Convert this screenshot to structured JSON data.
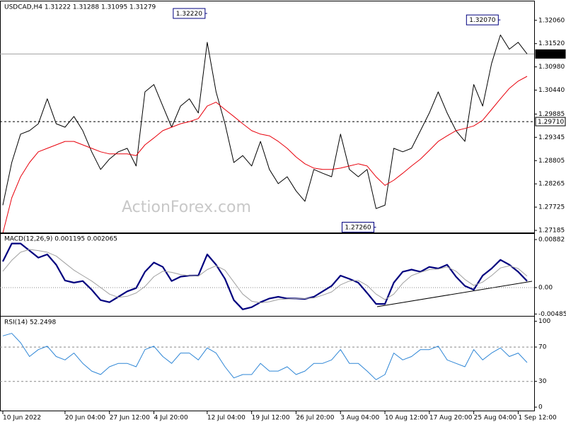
{
  "chart_data": [
    {
      "type": "line",
      "title": "USDCAD,H4  1.31222 1.31288 1.31095 1.31279",
      "watermark": "ActionForex.com",
      "categories": [
        "10 Jun 2022",
        null,
        null,
        null,
        null,
        null,
        null,
        "20 Jun 04:00",
        null,
        null,
        null,
        null,
        "27 Jun 12:00",
        null,
        null,
        null,
        null,
        "4 Jul 20:00",
        null,
        null,
        null,
        null,
        null,
        "12 Jul 04:00",
        null,
        null,
        null,
        null,
        "19 Jul 12:00",
        null,
        null,
        null,
        null,
        "26 Jul 20:00",
        null,
        null,
        null,
        null,
        "3 Aug 04:00",
        null,
        null,
        null,
        null,
        "10 Aug 12:00",
        null,
        null,
        null,
        null,
        "17 Aug 20:00",
        null,
        null,
        null,
        null,
        "25 Aug 04:00",
        null,
        null,
        null,
        null,
        "1 Sep 12:00",
        null
      ],
      "ylim": [
        1.2712,
        1.3245
      ],
      "yticks": [
        {
          "value": 1.3206,
          "label": "1.32060"
        },
        {
          "value": 1.3152,
          "label": "1.31520"
        },
        {
          "value": 1.3098,
          "label": "1.30980"
        },
        {
          "value": 1.3044,
          "label": "1.30440"
        },
        1.29885,
        1.29345,
        1.28805,
        1.28265,
        1.27725,
        1.27185
      ],
      "series": [
        {
          "color": "#000000",
          "line_width": 1,
          "values": [
            1.2777,
            1.2876,
            1.2942,
            1.295,
            1.2966,
            1.3024,
            1.2966,
            1.2958,
            1.2983,
            1.295,
            1.2901,
            1.286,
            1.2884,
            1.2901,
            1.2909,
            1.2868,
            1.304,
            1.3057,
            1.3007,
            1.2958,
            1.3007,
            1.3024,
            1.2991,
            1.3155,
            1.304,
            1.2966,
            1.2876,
            1.2892,
            1.2868,
            1.2925,
            1.286,
            1.2827,
            1.2843,
            1.281,
            1.2786,
            1.286,
            1.2851,
            1.2843,
            1.2942,
            1.286,
            1.2843,
            1.286,
            1.2769,
            1.2777,
            1.2909,
            1.2901,
            1.2909,
            1.295,
            1.2991,
            1.304,
            1.2991,
            1.295,
            1.2925,
            1.3057,
            1.3007,
            1.3106,
            1.3172,
            1.3139,
            1.3155,
            1.3128
          ]
        },
        {
          "color": "#e8000b",
          "line_width": 1,
          "values": [
            1.2712,
            1.2794,
            1.2843,
            1.2876,
            1.2901,
            1.2909,
            1.2917,
            1.2925,
            1.2925,
            1.2917,
            1.2909,
            1.2901,
            1.2896,
            1.2896,
            1.2896,
            1.2892,
            1.2917,
            1.2933,
            1.295,
            1.2958,
            1.2966,
            1.2971,
            1.2978,
            1.3007,
            1.3016,
            1.2999,
            1.2983,
            1.2966,
            1.295,
            1.2942,
            1.2938,
            1.2925,
            1.2909,
            1.2889,
            1.2873,
            1.2863,
            1.286,
            1.286,
            1.2863,
            1.2868,
            1.2873,
            1.2868,
            1.2843,
            1.2823,
            1.2835,
            1.2851,
            1.2868,
            1.2884,
            1.2904,
            1.2925,
            1.2938,
            1.295,
            1.2955,
            1.2961,
            1.2974,
            1.2999,
            1.3024,
            1.3048,
            1.3065,
            1.3076
          ]
        }
      ],
      "hlines": [
        {
          "value": 1.31279,
          "label": "1.31279",
          "style": "current"
        },
        {
          "value": 1.2971,
          "label": "1.29710",
          "style": "dashed"
        }
      ],
      "annotations": [
        {
          "value": 1.3222,
          "label": "1.32220",
          "x": 23
        },
        {
          "value": 1.3207,
          "label": "1.32070",
          "x": 56
        },
        {
          "value": 1.2726,
          "label": "1.27260",
          "x": 42
        }
      ]
    },
    {
      "type": "line",
      "title": "MACD(12,26,9) 0.001195 0.002065",
      "ylim": [
        -0.0052,
        0.0096
      ],
      "yticks": [
        0.00882,
        {
          "value": 0,
          "label": "0.00"
        },
        -0.004858
      ],
      "series": [
        {
          "color": "#00007f",
          "line_width": 2.2,
          "values": [
            0.0048,
            0.0081,
            0.0081,
            0.0068,
            0.0055,
            0.0061,
            0.0042,
            0.0013,
            0.0009,
            0.0012,
            -0.0004,
            -0.0023,
            -0.0027,
            -0.0017,
            -0.0007,
            -0.0001,
            0.0029,
            0.0046,
            0.0038,
            0.0012,
            0.002,
            0.0022,
            0.0022,
            0.0061,
            0.0042,
            0.0016,
            -0.0023,
            -0.004,
            -0.0036,
            -0.0027,
            -0.002,
            -0.0017,
            -0.002,
            -0.002,
            -0.0021,
            -0.0017,
            -0.0007,
            0.0003,
            0.0022,
            0.0016,
            0.0009,
            -0.001,
            -0.003,
            -0.003,
            0.0009,
            0.0029,
            0.0033,
            0.0029,
            0.0038,
            0.0035,
            0.0042,
            0.002,
            0.0003,
            -0.0004,
            0.0022,
            0.0035,
            0.0051,
            0.0042,
            0.0029,
            0.0012
          ]
        },
        {
          "color": "#a0a0a0",
          "line_width": 1,
          "values": [
            0.003,
            0.005,
            0.0065,
            0.007,
            0.0068,
            0.0065,
            0.0058,
            0.0045,
            0.0032,
            0.0022,
            0.0012,
            0.0,
            -0.0012,
            -0.0018,
            -0.0016,
            -0.001,
            0.0002,
            0.002,
            0.003,
            0.0028,
            0.0024,
            0.0022,
            0.0021,
            0.0033,
            0.004,
            0.0032,
            0.001,
            -0.0012,
            -0.0025,
            -0.0028,
            -0.0026,
            -0.0022,
            -0.0021,
            -0.002,
            -0.002,
            -0.0019,
            -0.0014,
            -0.0008,
            0.0005,
            0.0012,
            0.0013,
            0.0004,
            -0.0012,
            -0.0022,
            -0.0012,
            0.0008,
            0.0022,
            0.0028,
            0.0033,
            0.0034,
            0.0038,
            0.003,
            0.0015,
            0.0004,
            0.001,
            0.0022,
            0.0036,
            0.004,
            0.0035,
            0.0021
          ]
        }
      ],
      "hlines": [
        {
          "value": 0,
          "style": "dotted"
        }
      ]
    },
    {
      "type": "line",
      "title": "RSI(14) 52.2498",
      "ylim": [
        -4,
        103
      ],
      "yticks": [
        0,
        30,
        70,
        100
      ],
      "series": [
        {
          "color": "#2e86d6",
          "line_width": 1,
          "values": [
            83,
            86,
            75,
            59,
            67,
            71,
            59,
            55,
            63,
            51,
            42,
            38,
            47,
            51,
            51,
            47,
            67,
            71,
            59,
            51,
            63,
            63,
            55,
            69,
            63,
            47,
            34,
            38,
            38,
            51,
            42,
            42,
            47,
            38,
            42,
            51,
            51,
            55,
            67,
            51,
            51,
            42,
            32,
            38,
            63,
            55,
            59,
            67,
            67,
            71,
            55,
            51,
            47,
            67,
            55,
            63,
            69,
            59,
            63,
            52
          ]
        }
      ],
      "hlines": [
        {
          "value": 30,
          "style": "dashed"
        },
        {
          "value": 70,
          "style": "dashed"
        }
      ]
    }
  ]
}
